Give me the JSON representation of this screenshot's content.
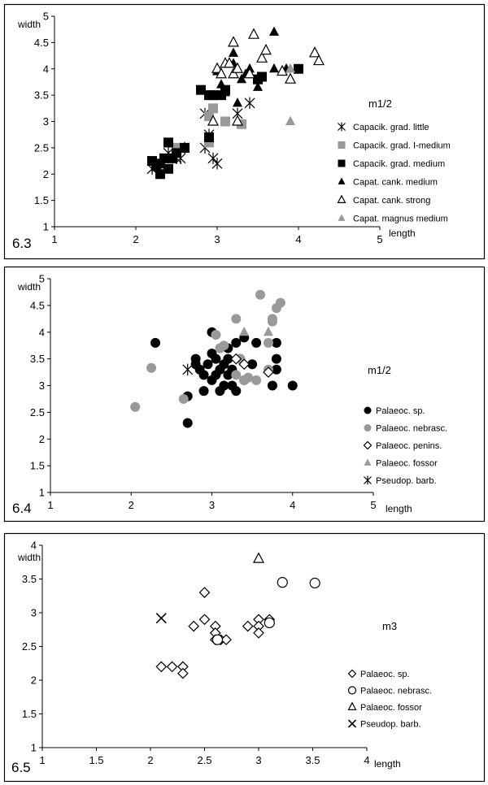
{
  "chart_data": [
    {
      "id": "6.3",
      "type": "scatter",
      "xlabel": "length",
      "ylabel": "width",
      "xlim": [
        1,
        5
      ],
      "ylim": [
        1,
        5
      ],
      "xticks": [
        "1",
        "2",
        "3",
        "4",
        "5"
      ],
      "yticks": [
        "1",
        "1.5",
        "2",
        "2.5",
        "3",
        "3.5",
        "4",
        "4.5",
        "5"
      ],
      "legend_title": "m1/2",
      "series": [
        {
          "name": "Capacik. grad. little",
          "marker": "asterisk",
          "color": "#000000",
          "points": [
            [
              2.2,
              2.1
            ],
            [
              2.3,
              2.2
            ],
            [
              2.4,
              2.4
            ],
            [
              2.5,
              2.3
            ],
            [
              2.55,
              2.3
            ],
            [
              2.6,
              2.5
            ],
            [
              2.85,
              3.15
            ],
            [
              2.9,
              2.75
            ],
            [
              2.95,
              2.3
            ],
            [
              3.0,
              2.2
            ],
            [
              3.25,
              3.15
            ],
            [
              3.4,
              3.35
            ],
            [
              2.85,
              2.5
            ]
          ]
        },
        {
          "name": "Capacik. grad. I-medium",
          "marker": "square",
          "color": "#999999",
          "points": [
            [
              2.4,
              2.6
            ],
            [
              2.5,
              2.5
            ],
            [
              2.9,
              3.1
            ],
            [
              2.9,
              2.6
            ],
            [
              2.95,
              3.25
            ],
            [
              3.1,
              3.0
            ],
            [
              3.3,
              2.95
            ]
          ]
        },
        {
          "name": "Capacik. grad. medium",
          "marker": "square",
          "color": "#000000",
          "points": [
            [
              2.2,
              2.25
            ],
            [
              2.25,
              2.15
            ],
            [
              2.3,
              2.2
            ],
            [
              2.3,
              2.0
            ],
            [
              2.35,
              2.3
            ],
            [
              2.4,
              2.1
            ],
            [
              2.4,
              2.6
            ],
            [
              2.45,
              2.3
            ],
            [
              2.5,
              2.4
            ],
            [
              2.6,
              2.5
            ],
            [
              2.8,
              3.6
            ],
            [
              2.9,
              3.5
            ],
            [
              2.95,
              3.5
            ],
            [
              2.9,
              2.7
            ],
            [
              3.05,
              3.5
            ],
            [
              3.1,
              3.6
            ],
            [
              3.5,
              3.8
            ],
            [
              3.55,
              3.85
            ],
            [
              4.0,
              4.0
            ]
          ]
        },
        {
          "name": "Capat. cank. medium",
          "marker": "triangle",
          "color": "#000000",
          "points": [
            [
              3.0,
              3.95
            ],
            [
              3.05,
              3.7
            ],
            [
              3.1,
              3.55
            ],
            [
              3.2,
              4.3
            ],
            [
              3.2,
              4.1
            ],
            [
              3.25,
              3.35
            ],
            [
              3.3,
              3.8
            ],
            [
              3.35,
              3.9
            ],
            [
              3.4,
              4.0
            ],
            [
              3.5,
              3.65
            ],
            [
              3.7,
              4.7
            ],
            [
              3.7,
              4.0
            ],
            [
              3.85,
              4.0
            ]
          ]
        },
        {
          "name": "Capat. cank. strong",
          "marker": "triangle-open",
          "color": "#000000",
          "points": [
            [
              2.95,
              3.0
            ],
            [
              3.0,
              4.0
            ],
            [
              3.05,
              3.9
            ],
            [
              3.1,
              4.1
            ],
            [
              3.15,
              4.1
            ],
            [
              3.2,
              4.5
            ],
            [
              3.2,
              3.9
            ],
            [
              3.25,
              4.0
            ],
            [
              3.25,
              3.0
            ],
            [
              3.4,
              3.9
            ],
            [
              3.45,
              4.65
            ],
            [
              3.55,
              4.2
            ],
            [
              3.6,
              4.35
            ],
            [
              3.8,
              3.95
            ],
            [
              3.9,
              3.8
            ],
            [
              4.2,
              4.3
            ],
            [
              4.25,
              4.15
            ]
          ]
        },
        {
          "name": "Capat. magnus medium",
          "marker": "triangle",
          "color": "#999999",
          "points": [
            [
              3.9,
              4.0
            ],
            [
              3.9,
              3.0
            ]
          ]
        }
      ]
    },
    {
      "id": "6.4",
      "type": "scatter",
      "xlabel": "length",
      "ylabel": "width",
      "xlim": [
        1,
        5
      ],
      "ylim": [
        1,
        5
      ],
      "xticks": [
        "1",
        "2",
        "3",
        "4",
        "5"
      ],
      "yticks": [
        "1",
        "1.5",
        "2",
        "2.5",
        "3",
        "3.5",
        "4",
        "4.5",
        "5"
      ],
      "legend_title": "m1/2",
      "series": [
        {
          "name": "Palaeoc. sp.",
          "marker": "circle",
          "color": "#000000",
          "points": [
            [
              2.3,
              3.8
            ],
            [
              2.7,
              2.8
            ],
            [
              2.7,
              2.3
            ],
            [
              2.8,
              3.4
            ],
            [
              2.8,
              3.5
            ],
            [
              2.85,
              3.3
            ],
            [
              2.9,
              3.2
            ],
            [
              2.9,
              2.9
            ],
            [
              2.95,
              3.4
            ],
            [
              3.0,
              4.0
            ],
            [
              3.0,
              3.6
            ],
            [
              3.0,
              3.1
            ],
            [
              3.05,
              3.5
            ],
            [
              3.05,
              3.2
            ],
            [
              3.1,
              3.3
            ],
            [
              3.1,
              2.9
            ],
            [
              3.15,
              3.4
            ],
            [
              3.15,
              3.0
            ],
            [
              3.2,
              3.7
            ],
            [
              3.2,
              3.5
            ],
            [
              3.2,
              3.2
            ],
            [
              3.25,
              3.3
            ],
            [
              3.25,
              3.0
            ],
            [
              3.3,
              3.8
            ],
            [
              3.3,
              2.9
            ],
            [
              3.35,
              3.5
            ],
            [
              3.4,
              3.9
            ],
            [
              3.4,
              3.1
            ],
            [
              3.5,
              3.4
            ],
            [
              3.55,
              3.8
            ],
            [
              3.8,
              3.8
            ],
            [
              3.8,
              3.5
            ],
            [
              3.8,
              3.3
            ],
            [
              4.0,
              3.0
            ],
            [
              3.75,
              3.0
            ]
          ]
        },
        {
          "name": "Palaeoc. nebrasc.",
          "marker": "circle",
          "color": "#999999",
          "points": [
            [
              2.05,
              2.6
            ],
            [
              2.25,
              3.33
            ],
            [
              2.65,
              2.75
            ],
            [
              3.05,
              3.95
            ],
            [
              3.1,
              3.7
            ],
            [
              3.15,
              3.75
            ],
            [
              3.3,
              4.25
            ],
            [
              3.3,
              3.2
            ],
            [
              3.35,
              3.5
            ],
            [
              3.4,
              3.1
            ],
            [
              3.45,
              3.15
            ],
            [
              3.55,
              3.1
            ],
            [
              3.6,
              4.7
            ],
            [
              3.7,
              3.8
            ],
            [
              3.7,
              3.3
            ],
            [
              3.75,
              4.25
            ],
            [
              3.75,
              4.2
            ],
            [
              3.8,
              4.45
            ],
            [
              3.85,
              4.55
            ]
          ]
        },
        {
          "name": "Palaeoc. penins.",
          "marker": "diamond-open",
          "color": "#000000",
          "points": [
            [
              3.3,
              3.5
            ],
            [
              3.4,
              3.4
            ],
            [
              3.7,
              3.25
            ]
          ]
        },
        {
          "name": "Palaeoc. fossor",
          "marker": "triangle",
          "color": "#999999",
          "points": [
            [
              3.4,
              4.0
            ],
            [
              3.7,
              4.0
            ]
          ]
        },
        {
          "name": "Pseudop. barb.",
          "marker": "asterisk",
          "color": "#000000",
          "points": [
            [
              2.7,
              3.3
            ]
          ]
        }
      ]
    },
    {
      "id": "6.5",
      "type": "scatter",
      "xlabel": "length",
      "ylabel": "width",
      "xlim": [
        1,
        4
      ],
      "ylim": [
        1,
        4
      ],
      "xticks": [
        "1",
        "1.5",
        "2",
        "2.5",
        "3",
        "3.5",
        "4"
      ],
      "yticks": [
        "1",
        "1.5",
        "2",
        "2.5",
        "3",
        "3.5",
        "4"
      ],
      "legend_title": "m3",
      "series": [
        {
          "name": "Palaeoc. sp.",
          "marker": "diamond-open",
          "color": "#000000",
          "points": [
            [
              2.1,
              2.2
            ],
            [
              2.2,
              2.2
            ],
            [
              2.3,
              2.2
            ],
            [
              2.3,
              2.1
            ],
            [
              2.4,
              2.8
            ],
            [
              2.5,
              3.3
            ],
            [
              2.5,
              2.9
            ],
            [
              2.6,
              2.8
            ],
            [
              2.6,
              2.7
            ],
            [
              2.6,
              2.6
            ],
            [
              2.65,
              2.6
            ],
            [
              2.7,
              2.6
            ],
            [
              2.9,
              2.8
            ],
            [
              3.0,
              2.9
            ],
            [
              3.0,
              2.8
            ],
            [
              3.0,
              2.7
            ],
            [
              3.1,
              2.9
            ]
          ]
        },
        {
          "name": "Palaeoc. nebrasc.",
          "marker": "circle-open",
          "color": "#000000",
          "points": [
            [
              2.62,
              2.6
            ],
            [
              3.1,
              2.85
            ],
            [
              3.22,
              3.45
            ],
            [
              3.52,
              3.44
            ]
          ]
        },
        {
          "name": "Palaeoc. fossor",
          "marker": "triangle-open",
          "color": "#000000",
          "points": [
            [
              3.0,
              3.8
            ]
          ]
        },
        {
          "name": "Pseudop. barb.",
          "marker": "cross",
          "color": "#000000",
          "points": [
            [
              2.1,
              2.92
            ]
          ]
        }
      ]
    }
  ]
}
